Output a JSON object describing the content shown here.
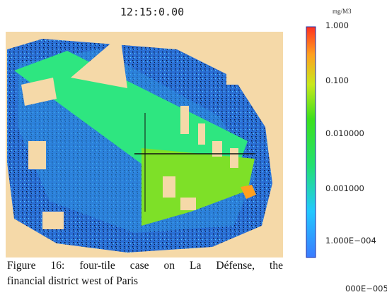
{
  "figure": {
    "time_label": "12:15:0.00",
    "colorbar": {
      "unit": "mg/M3",
      "labels": [
        "1.000",
        "0.100",
        "0.010000",
        "0.001000",
        "1.000E−004",
        "000E−005"
      ]
    },
    "caption": {
      "line1": "Figure 16: four-tile case on La Défense, the",
      "line2": "financial district west of Paris"
    }
  }
}
